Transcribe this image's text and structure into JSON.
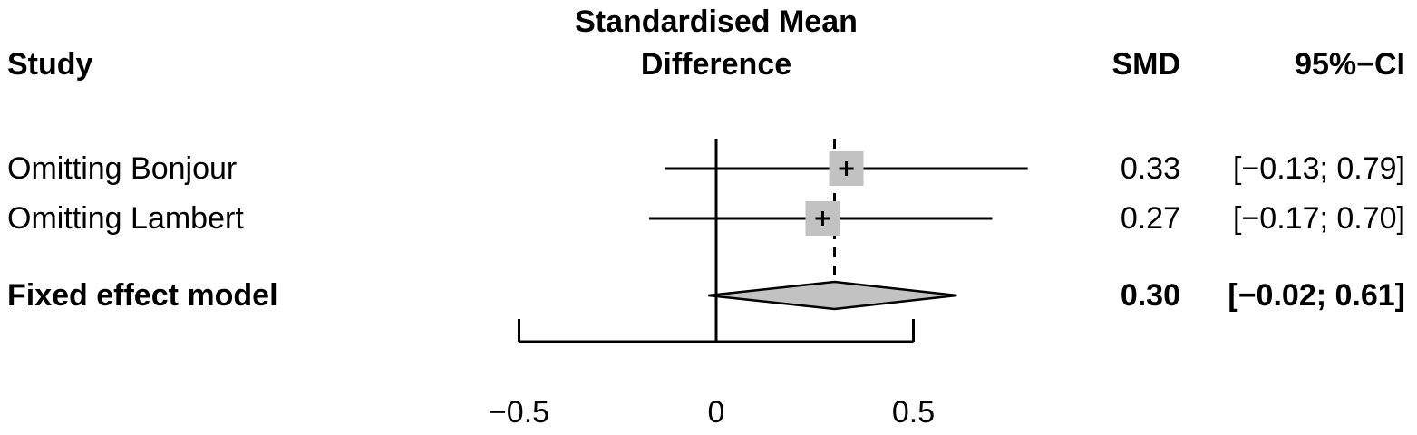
{
  "header": {
    "study": "Study",
    "effect_line1": "Standardised Mean",
    "effect_line2": "Difference",
    "smd": "SMD",
    "ci": "95%−CI"
  },
  "chart_data": {
    "type": "forest",
    "title": "Standardised Mean Difference",
    "xlabel": "",
    "x_ticks": [
      -0.5,
      0,
      0.5
    ],
    "x_tick_labels": [
      "−0.5",
      "0",
      "0.5"
    ],
    "zero_line": 0,
    "marker_color": "#c2c2c2",
    "rows": [
      {
        "label": "Omitting Bonjour",
        "smd": 0.33,
        "ci_low": -0.13,
        "ci_high": 0.79,
        "smd_text": "0.33",
        "ci_text": "[−0.13; 0.79]"
      },
      {
        "label": "Omitting Lambert",
        "smd": 0.27,
        "ci_low": -0.17,
        "ci_high": 0.7,
        "smd_text": "0.27",
        "ci_text": "[−0.17; 0.70]"
      }
    ],
    "summary": {
      "label": "Fixed effect model",
      "smd": 0.3,
      "ci_low": -0.02,
      "ci_high": 0.61,
      "smd_text": "0.30",
      "ci_text": "[−0.02; 0.61]"
    }
  }
}
